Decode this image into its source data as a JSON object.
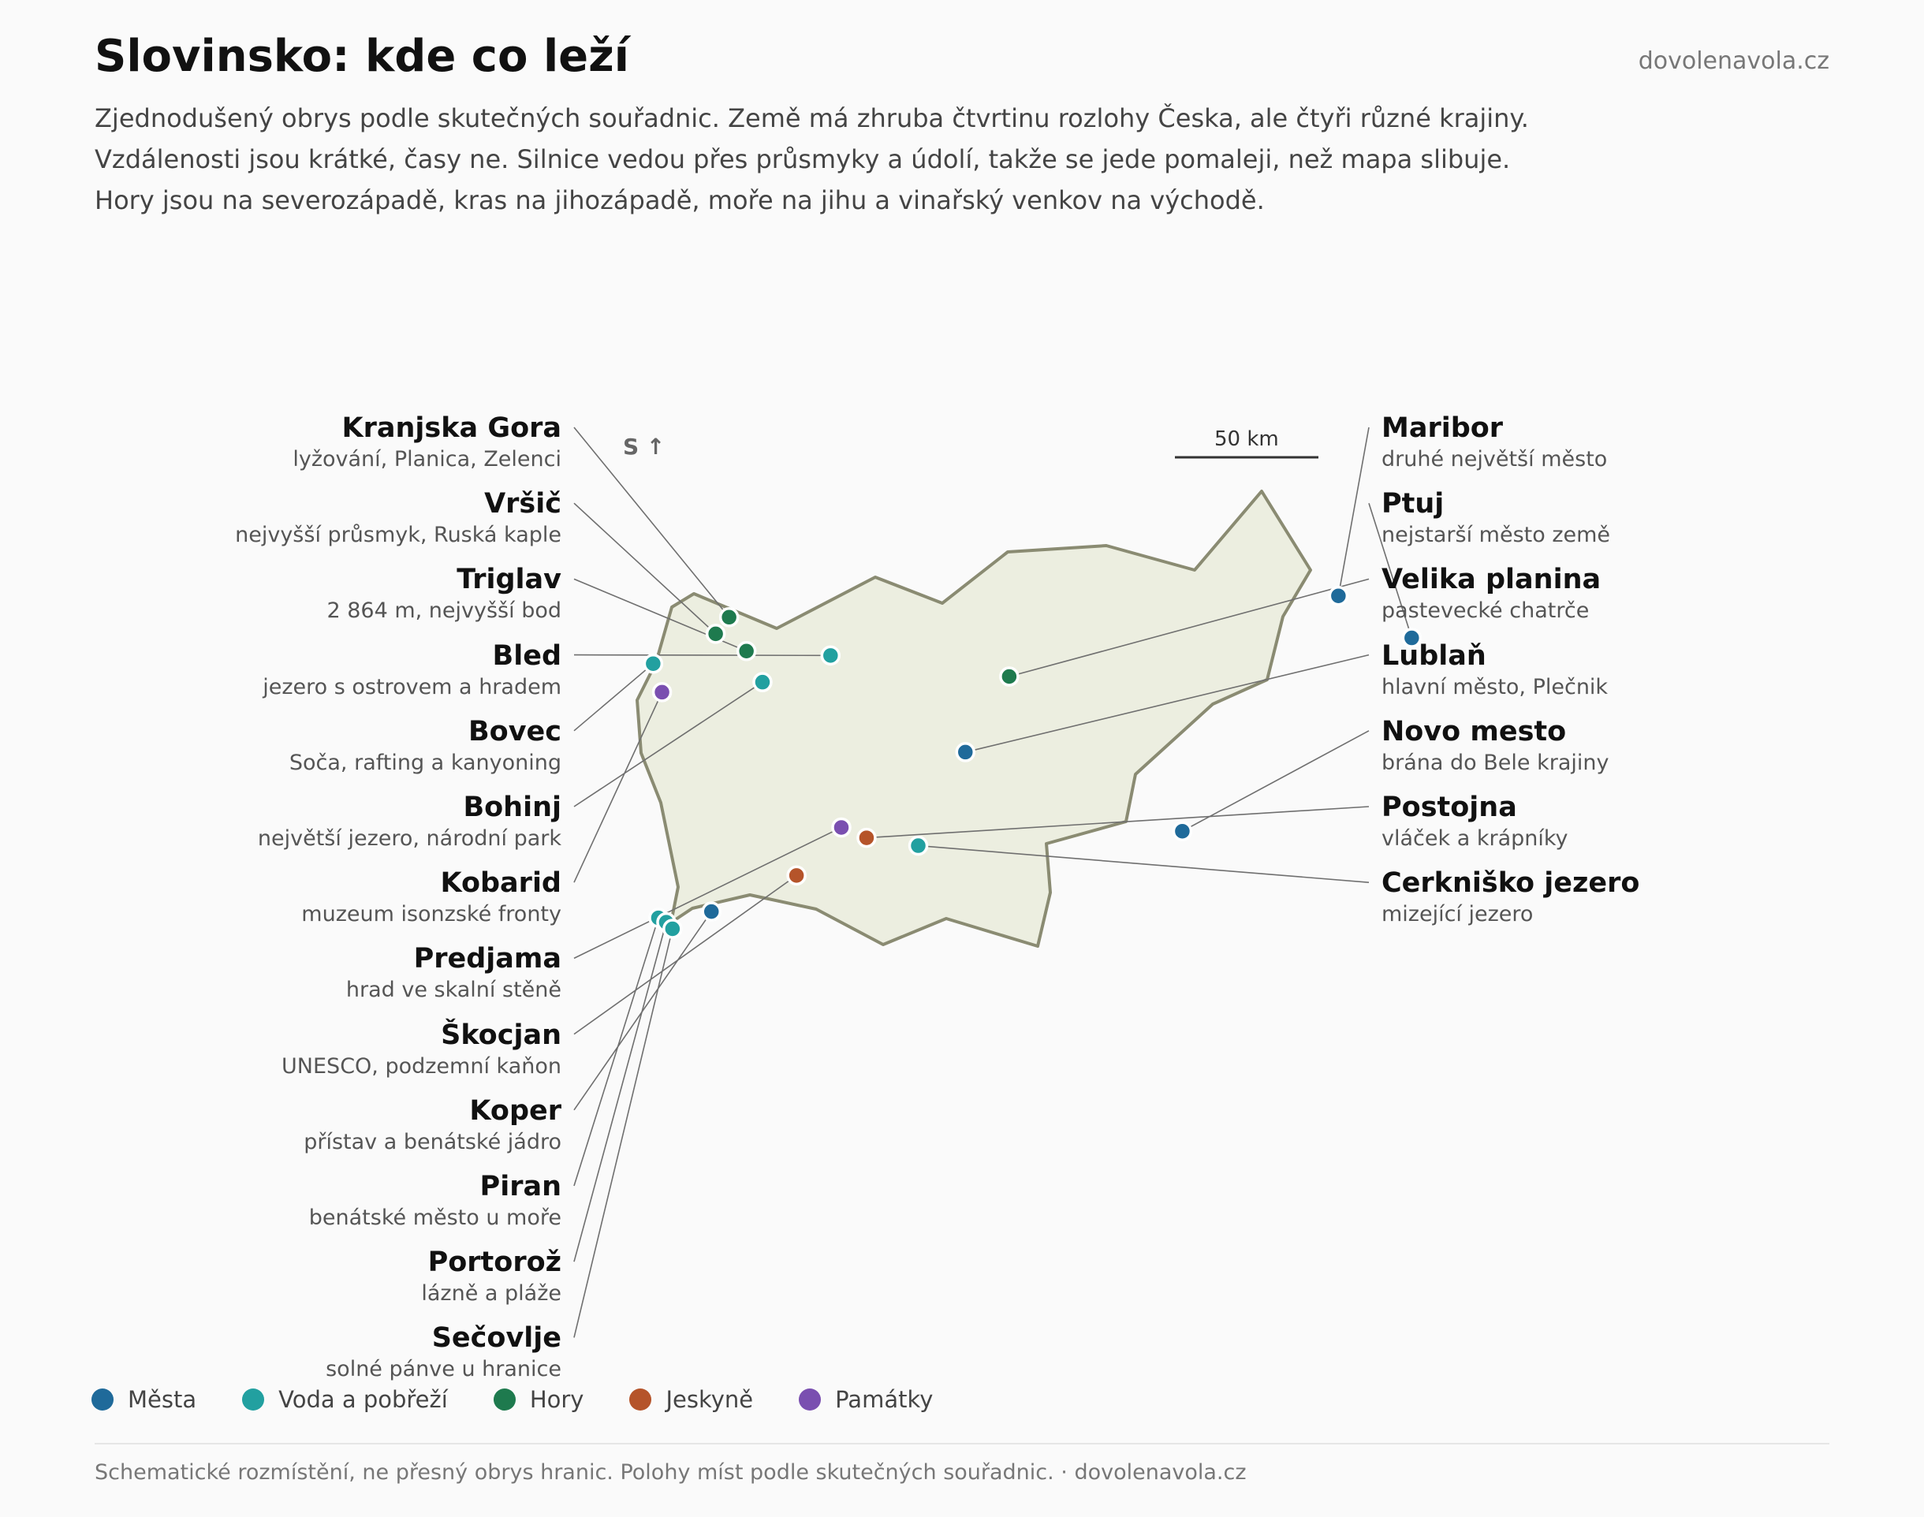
{
  "header": {
    "title": "Slovinsko: kde co leží",
    "site": "dovolenavola.cz",
    "intro": [
      "Zjednodušený obrys podle skutečných souřadnic. Země má zhruba čtvrtinu rozlohy Česka, ale čtyři různé krajiny.",
      "Vzdálenosti jsou krátké, časy ne. Silnice vedou přes průsmyky a údolí, takže se jede pomaleji, než mapa slibuje.",
      "Hory jsou na severozápadě, kras na jihozápadě, moře na jihu a vinařský venkov na východě."
    ]
  },
  "map": {
    "north_label": "S ↑",
    "scale_label": "50 km",
    "outline_color": "#8a8b72",
    "fill_color": "#eceee0"
  },
  "categories": {
    "mesta": {
      "label": "Města",
      "color": "#1f6a9a"
    },
    "voda": {
      "label": "Voda a pobřeží",
      "color": "#22a0a0"
    },
    "hory": {
      "label": "Hory",
      "color": "#1e7a4e"
    },
    "jeskyne": {
      "label": "Jeskyně",
      "color": "#b5542a"
    },
    "pamatky": {
      "label": "Památky",
      "color": "#7a4fb0"
    }
  },
  "places": [
    {
      "name": "Kranjska Gora",
      "desc": "lyžování, Planica, Zelenci",
      "category": "hory",
      "lat": 46.486,
      "lon": 13.784
    },
    {
      "name": "Vršič",
      "desc": "nejvyšší průsmyk, Ruská kaple",
      "category": "hory",
      "lat": 46.433,
      "lon": 13.743
    },
    {
      "name": "Triglav",
      "desc": "2 864 m, nejvyšší bod",
      "category": "hory",
      "lat": 46.378,
      "lon": 13.837
    },
    {
      "name": "Bled",
      "desc": "jezero s ostrovem a hradem",
      "category": "voda",
      "lat": 46.364,
      "lon": 14.094
    },
    {
      "name": "Bovec",
      "desc": "Soča, rafting a kanyoning",
      "category": "voda",
      "lat": 46.338,
      "lon": 13.552
    },
    {
      "name": "Bohinj",
      "desc": "největší jezero, národní park",
      "category": "voda",
      "lat": 46.279,
      "lon": 13.886
    },
    {
      "name": "Kobarid",
      "desc": "muzeum isonzské fronty",
      "category": "pamatky",
      "lat": 46.247,
      "lon": 13.579
    },
    {
      "name": "Predjama",
      "desc": "hrad ve skalní stěně",
      "category": "pamatky",
      "lat": 45.816,
      "lon": 14.127
    },
    {
      "name": "Škocjan",
      "desc": "UNESCO, podzemní kaňon",
      "category": "jeskyne",
      "lat": 45.663,
      "lon": 13.99
    },
    {
      "name": "Koper",
      "desc": "přístav a benátské jádro",
      "category": "mesta",
      "lat": 45.548,
      "lon": 13.73
    },
    {
      "name": "Piran",
      "desc": "benátské město u moře",
      "category": "voda",
      "lat": 45.528,
      "lon": 13.568
    },
    {
      "name": "Portorož",
      "desc": "lázně a pláže",
      "category": "voda",
      "lat": 45.514,
      "lon": 13.592
    },
    {
      "name": "Sečovlje",
      "desc": "solné pánve u hranice",
      "category": "voda",
      "lat": 45.493,
      "lon": 13.611
    },
    {
      "name": "Maribor",
      "desc": "druhé největší město",
      "category": "mesta",
      "lat": 46.554,
      "lon": 15.646
    },
    {
      "name": "Ptuj",
      "desc": "nejstarší město země",
      "category": "mesta",
      "lat": 46.42,
      "lon": 15.87
    },
    {
      "name": "Velika planina",
      "desc": "pastevecké chatrče",
      "category": "hory",
      "lat": 46.297,
      "lon": 14.64
    },
    {
      "name": "Lublaň",
      "desc": "hlavní město, Plečnik",
      "category": "mesta",
      "lat": 46.056,
      "lon": 14.506
    },
    {
      "name": "Novo mesto",
      "desc": "brána do Bele krajiny",
      "category": "mesta",
      "lat": 45.804,
      "lon": 15.169
    },
    {
      "name": "Postojna",
      "desc": "vláček a krápníky",
      "category": "jeskyne",
      "lat": 45.783,
      "lon": 14.204
    },
    {
      "name": "Cerkniško jezero",
      "desc": "mizející jezero",
      "category": "voda",
      "lat": 45.758,
      "lon": 14.362
    }
  ],
  "legend": [
    {
      "label": "Města",
      "color": "#1f6a9a"
    },
    {
      "label": "Voda a pobřeží",
      "color": "#22a0a0"
    },
    {
      "label": "Hory",
      "color": "#1e7a4e"
    },
    {
      "label": "Jeskyně",
      "color": "#b5542a"
    },
    {
      "label": "Památky",
      "color": "#7a4fb0"
    }
  ],
  "footer": "Schematické rozmístění, ne přesný obrys hranic. Polohy míst podle skutečných souřadnic. · dovolenavola.cz"
}
